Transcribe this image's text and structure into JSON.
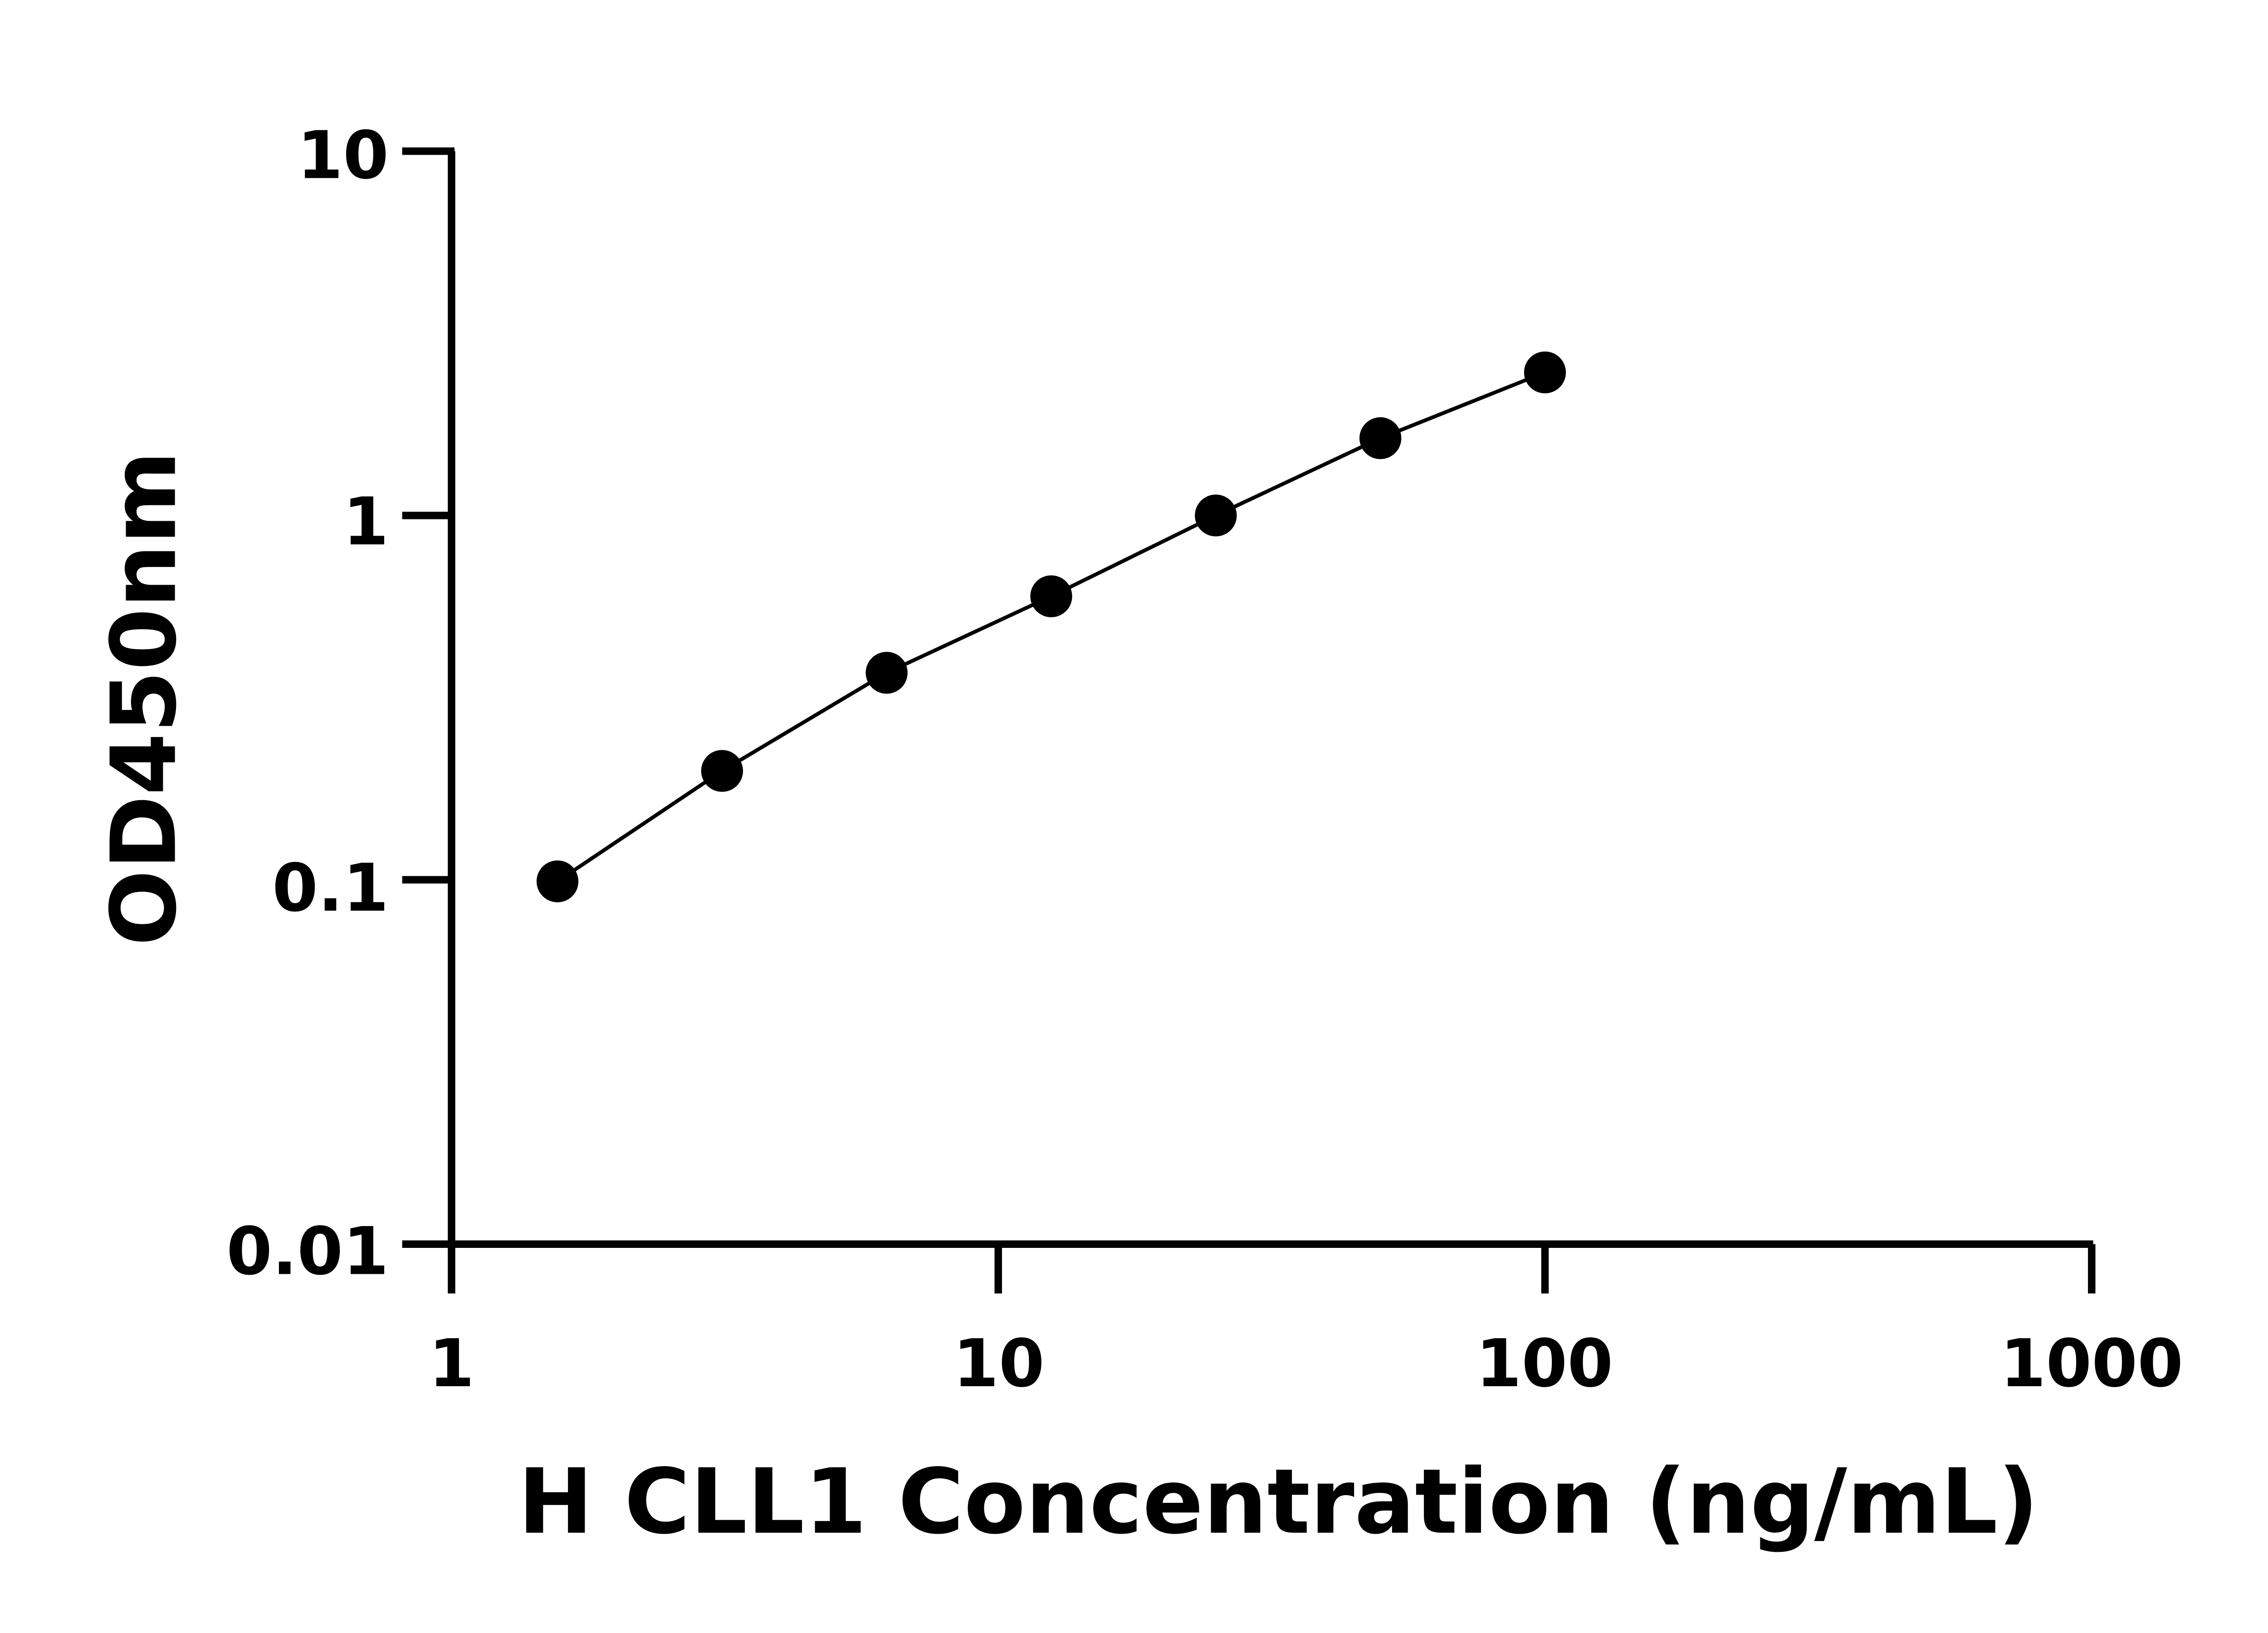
{
  "chart_data": {
    "type": "scatter",
    "title": "",
    "xlabel": "H CLL1 Concentration (ng/mL)",
    "ylabel": "OD450nm",
    "x_scale": "log",
    "y_scale": "log",
    "xlim": [
      1,
      1000
    ],
    "ylim": [
      0.01,
      10
    ],
    "x_ticks": [
      "1",
      "10",
      "100",
      "1000"
    ],
    "y_ticks": [
      "0.01",
      "0.1",
      "1",
      "10"
    ],
    "grid": false,
    "legend": "none",
    "fit_line": true,
    "color": "#000000",
    "series": [
      {
        "x": [
          1.5625,
          3.125,
          6.25,
          12.5,
          25,
          50,
          100
        ],
        "y": [
          0.099,
          0.199,
          0.37,
          0.6,
          1.0,
          1.63,
          2.47
        ]
      }
    ]
  }
}
